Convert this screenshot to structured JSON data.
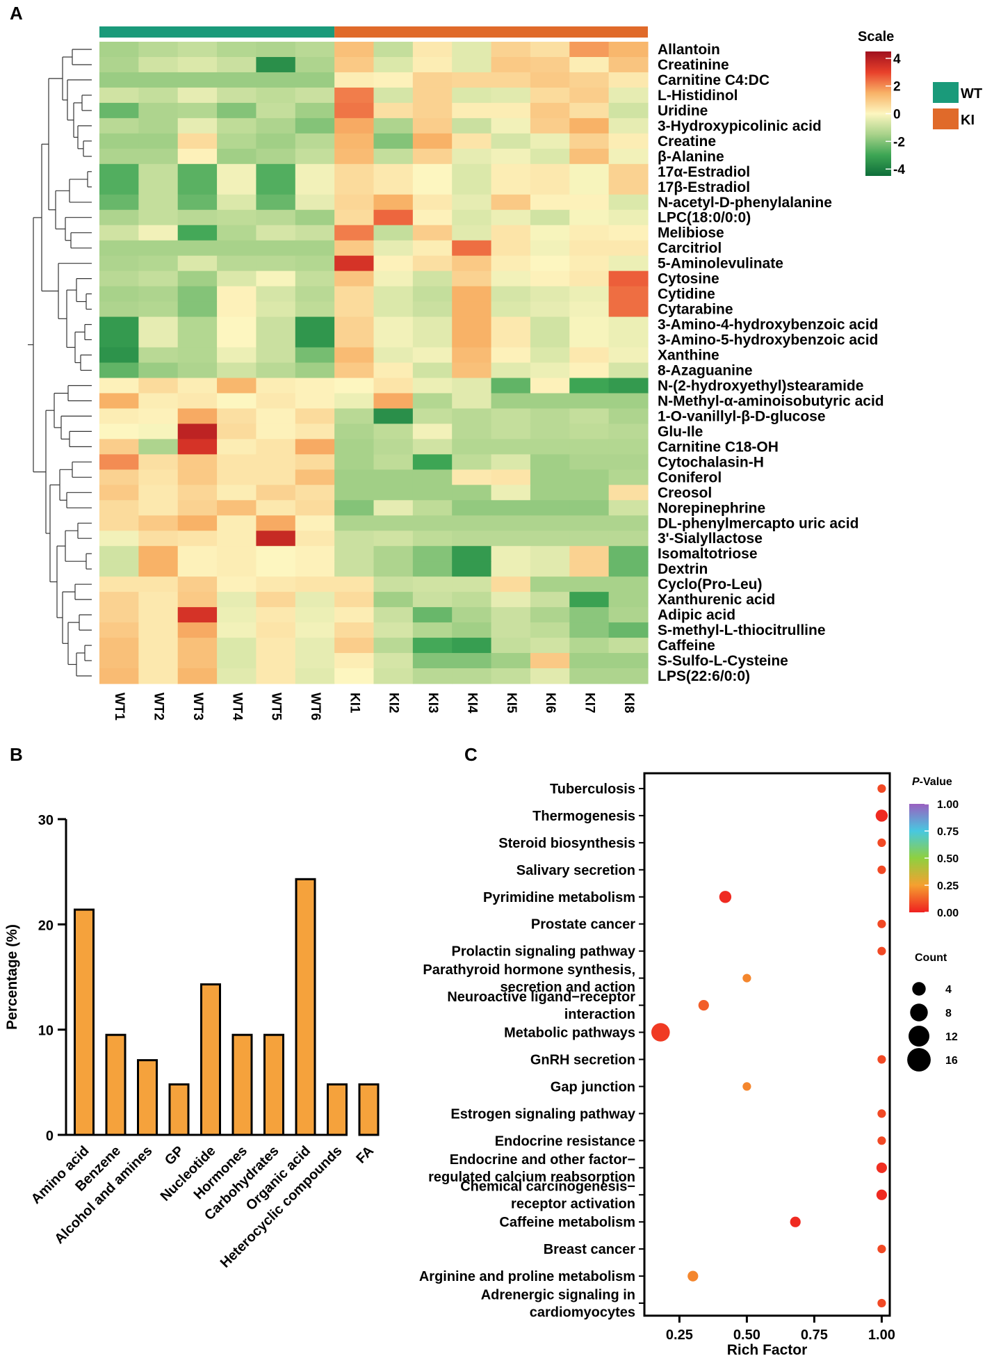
{
  "panel_labels": {
    "a": "A",
    "b": "B",
    "c": "C"
  },
  "chart_data": [
    {
      "type": "heatmap",
      "panel": "A",
      "columns": [
        "WT1",
        "WT2",
        "WT3",
        "WT4",
        "WT5",
        "WT6",
        "KI1",
        "KI2",
        "KI3",
        "KI4",
        "KI5",
        "KI6",
        "KI7",
        "KI8"
      ],
      "groups": [
        {
          "name": "WT",
          "color": "#1a9a7a",
          "span": 6
        },
        {
          "name": "KI",
          "color": "#e06a2a",
          "span": 8
        }
      ],
      "rows": [
        "Allantoin",
        "Creatinine",
        "Carnitine C4:DC",
        "L-Histidinol",
        "Uridine",
        "3-Hydroxypicolinic acid",
        "Creatine",
        "β-Alanine",
        "17α-Estradiol",
        "17β-Estradiol",
        "N-acetyl-D-phenylalanine",
        "LPC(18:0/0:0)",
        "Melibiose",
        "Carcitriol",
        "5-Aminolevulinate",
        "Cytosine",
        "Cytidine",
        "Cytarabine",
        "3-Amino-4-hydroxybenzoic acid",
        "3-Amino-5-hydroxybenzoic acid",
        "Xanthine",
        "8-Azaguanine",
        "N-(2-hydroxyethyl)stearamide",
        "N-Methyl-α-aminoisobutyric acid",
        "1-O-vanillyl-β-D-glucose",
        "Glu-Ile",
        "Carnitine C18-OH",
        "Cytochalasin-H",
        "Coniferol",
        "Creosol",
        "Norepinephrine",
        "DL-phenylmercapto uric acid",
        "3'-Sialyllactose",
        "Isomaltotriose",
        "Dextrin",
        "Cyclo(Pro-Leu)",
        "Xanthurenic acid",
        "Adipic acid",
        "S-methyl-L-thiocitrulline",
        "Caffeine",
        "S-Sulfo-L-Cysteine",
        "LPS(22:6/0:0)"
      ],
      "values": [
        [
          -1.5,
          -1.2,
          -1.0,
          -1.3,
          -1.4,
          -1.2,
          1.2,
          -1.0,
          0.3,
          -0.5,
          0.8,
          0.5,
          1.8,
          1.4
        ],
        [
          -1.4,
          -0.8,
          -0.6,
          -0.9,
          -3.6,
          -1.4,
          1.0,
          -0.6,
          0.2,
          -0.5,
          1.0,
          0.9,
          0.2,
          1.1
        ],
        [
          -1.7,
          -1.7,
          -1.7,
          -1.7,
          -1.7,
          -1.7,
          0.2,
          0.1,
          0.8,
          0.7,
          0.7,
          1.0,
          0.8,
          0.3
        ],
        [
          -0.8,
          -1.0,
          -0.4,
          -0.9,
          -1.1,
          -0.9,
          2.2,
          -0.7,
          0.8,
          -0.6,
          -0.5,
          0.6,
          0.9,
          -0.4
        ],
        [
          -2.4,
          -1.4,
          -1.3,
          -2.0,
          -1.0,
          -1.6,
          2.3,
          0.5,
          0.8,
          0.2,
          0.2,
          1.0,
          0.5,
          -0.8
        ],
        [
          -1.2,
          -1.4,
          -0.4,
          -1.1,
          -1.4,
          -2.0,
          1.6,
          -1.4,
          0.9,
          -0.9,
          -0.2,
          0.9,
          1.5,
          -0.4
        ],
        [
          -1.6,
          -1.6,
          0.6,
          -1.3,
          -1.6,
          -1.2,
          1.4,
          -2.0,
          1.5,
          0.4,
          -0.7,
          -0.3,
          0.8,
          0.2
        ],
        [
          -1.4,
          -1.4,
          0.1,
          -1.6,
          -1.4,
          -1.0,
          1.3,
          -1.0,
          0.8,
          -0.4,
          -0.2,
          -0.6,
          1.2,
          -0.2
        ],
        [
          -2.7,
          -1.0,
          -2.6,
          -0.2,
          -2.7,
          -0.2,
          0.6,
          0.3,
          0.0,
          -0.6,
          0.2,
          0.3,
          -0.1,
          0.8
        ],
        [
          -2.7,
          -1.0,
          -2.6,
          -0.2,
          -2.7,
          -0.2,
          0.6,
          0.3,
          0.0,
          -0.6,
          0.2,
          0.3,
          -0.1,
          0.8
        ],
        [
          -2.4,
          -1.0,
          -2.4,
          -0.6,
          -2.4,
          -0.4,
          0.7,
          1.5,
          0.3,
          -0.4,
          1.0,
          0.1,
          0.1,
          -0.6
        ],
        [
          -1.4,
          -1.0,
          -1.2,
          -1.1,
          -1.2,
          -1.6,
          0.6,
          2.5,
          0.1,
          -0.6,
          -0.3,
          -0.8,
          -0.1,
          -0.3
        ],
        [
          -0.8,
          -0.2,
          -2.9,
          -1.3,
          -0.7,
          -0.9,
          2.2,
          -1.0,
          0.9,
          -0.5,
          0.4,
          -0.1,
          0.2,
          0.1
        ],
        [
          -1.5,
          -1.5,
          -1.5,
          -1.5,
          -1.5,
          -1.5,
          1.0,
          -0.4,
          0.2,
          2.4,
          0.4,
          -0.2,
          0.3,
          0.3
        ],
        [
          -1.4,
          -1.3,
          -0.6,
          -1.2,
          -1.2,
          -1.3,
          3.4,
          0.1,
          0.5,
          1.0,
          0.2,
          0.0,
          0.2,
          -0.3
        ],
        [
          -1.2,
          -1.0,
          -1.6,
          -0.6,
          -0.1,
          -1.0,
          1.1,
          -0.2,
          -0.8,
          0.8,
          -0.2,
          0.1,
          0.3,
          2.6
        ],
        [
          -1.5,
          -1.4,
          -2.0,
          0.1,
          -0.7,
          -1.2,
          0.6,
          -0.6,
          -1.0,
          1.5,
          -0.7,
          -0.5,
          -0.3,
          2.4
        ],
        [
          -1.4,
          -1.3,
          -2.0,
          0.1,
          -0.6,
          -1.1,
          0.6,
          -0.6,
          -0.9,
          1.5,
          -0.6,
          -0.4,
          -0.2,
          2.4
        ],
        [
          -3.3,
          -0.4,
          -1.3,
          0.0,
          -0.9,
          -3.4,
          0.8,
          -0.2,
          -0.5,
          1.5,
          0.3,
          -0.8,
          -0.1,
          -0.3
        ],
        [
          -3.3,
          -0.4,
          -1.3,
          0.0,
          -0.9,
          -3.4,
          0.8,
          -0.2,
          -0.5,
          1.5,
          0.3,
          -0.8,
          -0.1,
          -0.3
        ],
        [
          -3.5,
          -1.2,
          -1.3,
          -0.3,
          -0.9,
          -2.2,
          1.3,
          -0.4,
          -0.2,
          1.3,
          0.1,
          -0.6,
          0.3,
          -0.2
        ],
        [
          -2.5,
          -1.7,
          -1.4,
          -0.8,
          -1.2,
          -1.6,
          1.0,
          0.2,
          -0.8,
          1.2,
          -0.5,
          -0.3,
          0.1,
          -0.7
        ],
        [
          0.1,
          0.6,
          0.2,
          1.4,
          0.2,
          0.1,
          0.0,
          0.4,
          -0.3,
          -0.5,
          -2.5,
          0.1,
          -3.0,
          -3.3
        ],
        [
          1.5,
          0.2,
          0.3,
          0.0,
          0.3,
          0.1,
          -0.3,
          1.6,
          -1.3,
          -0.5,
          -1.6,
          -1.6,
          -1.6,
          -1.6
        ],
        [
          0.2,
          0.1,
          1.6,
          0.5,
          0.1,
          0.6,
          -1.2,
          -3.6,
          -1.0,
          -1.2,
          -1.0,
          -1.2,
          -1.0,
          -1.4
        ],
        [
          0.0,
          -0.1,
          3.9,
          0.6,
          0.1,
          0.3,
          -1.4,
          -1.1,
          -0.2,
          -1.2,
          -1.0,
          -1.2,
          -1.1,
          -1.2
        ],
        [
          0.9,
          -1.4,
          3.4,
          0.2,
          0.4,
          1.6,
          -1.5,
          -1.2,
          -0.8,
          -1.3,
          -1.3,
          -1.3,
          -1.3,
          -1.3
        ],
        [
          2.0,
          0.5,
          1.0,
          0.4,
          0.4,
          0.6,
          -1.5,
          -1.1,
          -3.0,
          -1.1,
          -0.6,
          -1.6,
          -1.4,
          -1.4
        ],
        [
          0.8,
          0.4,
          1.0,
          0.4,
          0.4,
          1.2,
          -1.6,
          -1.6,
          -1.6,
          0.3,
          0.4,
          -1.6,
          -1.6,
          -1.3
        ],
        [
          1.0,
          0.3,
          0.7,
          0.2,
          0.8,
          0.5,
          -1.6,
          -1.6,
          -1.6,
          -1.6,
          -0.3,
          -1.6,
          -1.6,
          0.5
        ],
        [
          0.6,
          0.3,
          0.8,
          1.2,
          0.3,
          0.6,
          -2.0,
          -0.4,
          -1.1,
          -1.8,
          -1.8,
          -1.8,
          -1.8,
          -0.8
        ],
        [
          0.6,
          1.0,
          1.5,
          0.2,
          1.6,
          0.1,
          -1.4,
          -1.4,
          -1.4,
          -1.4,
          -1.4,
          -1.4,
          -1.4,
          -1.4
        ],
        [
          -0.2,
          0.5,
          0.4,
          0.2,
          3.7,
          0.3,
          -0.9,
          -0.8,
          -1.1,
          -1.2,
          -1.2,
          -1.2,
          -1.2,
          -1.2
        ],
        [
          -0.8,
          1.5,
          0.1,
          0.2,
          0.0,
          0.1,
          -0.9,
          -1.4,
          -2.0,
          -3.3,
          -0.3,
          -0.5,
          0.8,
          -2.4
        ],
        [
          -0.8,
          1.5,
          0.1,
          0.2,
          0.0,
          0.1,
          -0.9,
          -1.4,
          -2.0,
          -3.3,
          -0.3,
          -0.5,
          0.8,
          -2.4
        ],
        [
          0.4,
          0.4,
          0.9,
          0.1,
          0.3,
          0.4,
          0.4,
          -0.9,
          -0.8,
          -0.8,
          0.6,
          -1.5,
          -1.5,
          -1.5
        ],
        [
          0.8,
          0.3,
          1.0,
          -0.4,
          0.7,
          -0.4,
          0.6,
          -1.6,
          -0.9,
          -1.1,
          -0.4,
          -0.9,
          -3.1,
          -1.5
        ],
        [
          0.8,
          0.3,
          3.4,
          -0.3,
          0.3,
          -0.3,
          0.2,
          -0.9,
          -2.4,
          -1.4,
          -0.9,
          -1.4,
          -1.9,
          -1.4
        ],
        [
          1.0,
          0.3,
          1.6,
          -0.2,
          0.4,
          -0.2,
          0.6,
          -0.7,
          -1.3,
          -1.6,
          -0.9,
          -1.1,
          -1.9,
          -2.4
        ],
        [
          1.2,
          0.3,
          1.2,
          -0.6,
          0.3,
          -0.4,
          0.9,
          -1.2,
          -2.9,
          -3.2,
          -1.0,
          -0.8,
          -1.3,
          -1.0
        ],
        [
          1.2,
          0.3,
          1.2,
          -0.6,
          0.3,
          -0.4,
          0.2,
          -0.7,
          -2.0,
          -2.0,
          -1.6,
          1.0,
          -1.6,
          -1.6
        ],
        [
          1.3,
          0.3,
          1.4,
          -0.5,
          0.3,
          -0.5,
          0.0,
          -0.8,
          -1.2,
          -1.2,
          -1.0,
          -0.5,
          -1.4,
          -1.4
        ]
      ],
      "color_scale": {
        "min": -4.5,
        "max": 4.5,
        "ticks": [
          "4",
          "2",
          "0",
          "-2",
          "-4"
        ],
        "colors": [
          "#0e6e3a",
          "#3da554",
          "#a8d28a",
          "#fdf6c0",
          "#f8b267",
          "#e8402a",
          "#a0101e"
        ]
      },
      "legend_title": "Scale",
      "group_legend": [
        "WT",
        "KI"
      ]
    },
    {
      "type": "bar",
      "panel": "B",
      "categories": [
        "Amino acid",
        "Benzene",
        "Alcohol and amines",
        "GP",
        "Nucleotide",
        "Hormones",
        "Carbohydrates",
        "Organic acid",
        "Heterocyclic compounds",
        "FA"
      ],
      "values": [
        21.4,
        9.5,
        7.1,
        4.8,
        14.3,
        9.5,
        9.5,
        24.3,
        4.8,
        4.8
      ],
      "ylim": [
        0,
        30
      ],
      "yticks": [
        "0",
        "10",
        "20",
        "30"
      ],
      "ylabel": "Percentage (%)",
      "xlabel": "",
      "bar_color": "#f5a23c"
    },
    {
      "type": "scatter",
      "panel": "C",
      "pathways": [
        "Tuberculosis",
        "Thermogenesis",
        "Steroid biosynthesis",
        "Salivary secretion",
        "Pyrimidine metabolism",
        "Prostate cancer",
        "Prolactin signaling pathway",
        "Parathyroid hormone synthesis, secretion and action",
        "Neuroactive ligand−receptor interaction",
        "Metabolic pathways",
        "GnRH secretion",
        "Gap junction",
        "Estrogen signaling pathway",
        "Endocrine resistance",
        "Endocrine and other factor−regulated calcium reabsorption",
        "Chemical carcinogenesis−receptor activation",
        "Caffeine metabolism",
        "Breast cancer",
        "Arginine and proline metabolism",
        "Adrenergic signaling in cardiomyocytes"
      ],
      "label_lines": [
        [
          "Tuberculosis"
        ],
        [
          "Thermogenesis"
        ],
        [
          "Steroid biosynthesis"
        ],
        [
          "Salivary secretion"
        ],
        [
          "Pyrimidine metabolism"
        ],
        [
          "Prostate cancer"
        ],
        [
          "Prolactin signaling pathway"
        ],
        [
          "Parathyroid hormone synthesis,",
          "secretion and action"
        ],
        [
          "Neuroactive ligand−receptor",
          "interaction"
        ],
        [
          "Metabolic pathways"
        ],
        [
          "GnRH secretion"
        ],
        [
          "Gap junction"
        ],
        [
          "Estrogen signaling pathway"
        ],
        [
          "Endocrine resistance"
        ],
        [
          "Endocrine and other factor−",
          "regulated calcium reabsorption"
        ],
        [
          "Chemical carcinogenesis−",
          "receptor activation"
        ],
        [
          "Caffeine metabolism"
        ],
        [
          "Breast cancer"
        ],
        [
          "Arginine and proline metabolism"
        ],
        [
          "Adrenergic signaling in",
          "cardiomyocytes"
        ]
      ],
      "rich_factor": [
        1.0,
        1.0,
        1.0,
        1.0,
        0.42,
        1.0,
        1.0,
        0.5,
        0.34,
        0.18,
        1.0,
        0.5,
        1.0,
        1.0,
        1.0,
        1.0,
        0.68,
        1.0,
        0.3,
        1.0
      ],
      "count": [
        1,
        3,
        1,
        1,
        3,
        1,
        1,
        1,
        2,
        9,
        1,
        1,
        1,
        1,
        2,
        2,
        2,
        1,
        2,
        1
      ],
      "p_value": [
        0.08,
        0.02,
        0.08,
        0.08,
        0.02,
        0.08,
        0.08,
        0.2,
        0.12,
        0.05,
        0.08,
        0.2,
        0.08,
        0.08,
        0.03,
        0.02,
        0.02,
        0.08,
        0.2,
        0.08
      ],
      "xlim": [
        0.12,
        1.03
      ],
      "xticks": [
        {
          "v": 0.25,
          "label": "0.25"
        },
        {
          "v": 0.5,
          "label": "0.50"
        },
        {
          "v": 0.75,
          "label": "0.75"
        },
        {
          "v": 1.0,
          "label": "1.00"
        }
      ],
      "xlabel": "Rich Factor",
      "color_legend": {
        "title_italic": "P",
        "title_rest": "-Value",
        "ticks": [
          "1.00",
          "0.75",
          "0.50",
          "0.25",
          "0.00"
        ]
      },
      "size_legend": {
        "title": "Count",
        "values": [
          4,
          8,
          12,
          16
        ],
        "labels": [
          "4",
          "8",
          "12",
          "16"
        ]
      }
    }
  ]
}
